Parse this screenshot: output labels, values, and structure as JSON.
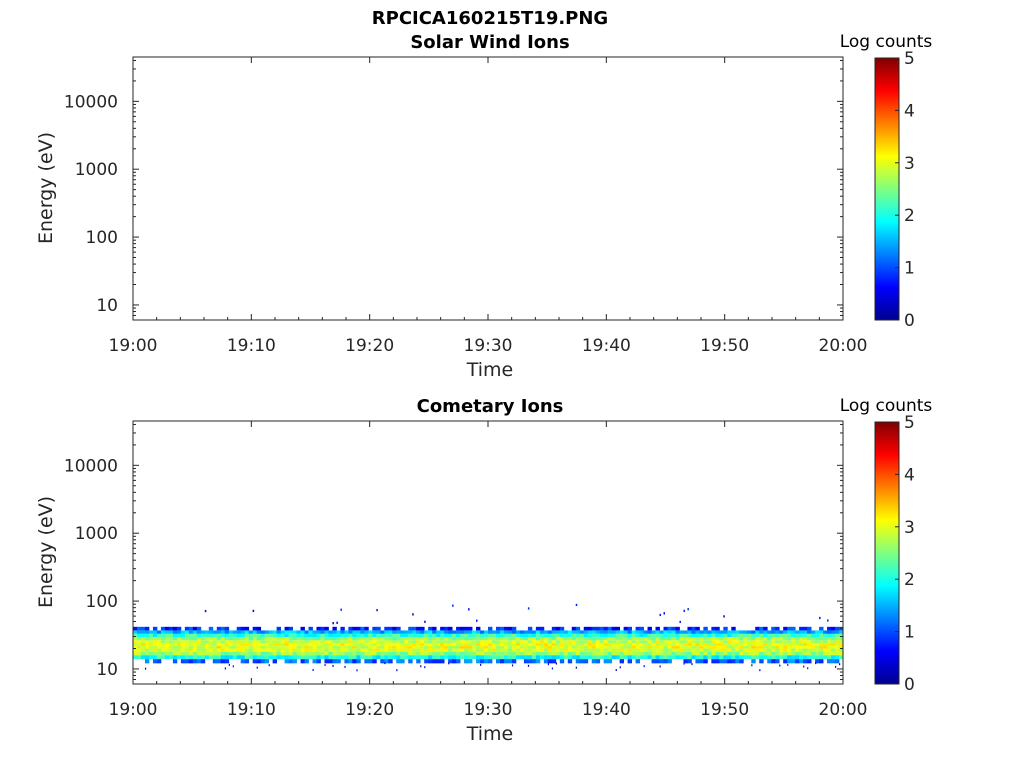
{
  "figure": {
    "title": "RPCICA160215T19.PNG"
  },
  "chart_data": [
    {
      "type": "heatmap",
      "title": "Solar Wind Ions",
      "xlabel": "Time",
      "ylabel": "Energy (eV)",
      "x_ticks": [
        "19:00",
        "19:10",
        "19:20",
        "19:30",
        "19:40",
        "19:50",
        "20:00"
      ],
      "y_ticks": [
        "10",
        "100",
        "1000",
        "10000"
      ],
      "y_scale": "log",
      "xlim": [
        "19:00",
        "20:00"
      ],
      "ylim": [
        6,
        45000
      ],
      "colorbar": {
        "label": "Log counts",
        "ticks": [
          "0",
          "1",
          "2",
          "3",
          "4",
          "5"
        ],
        "range": [
          0,
          5
        ],
        "colormap": "jet"
      },
      "values": [],
      "note_empty": true
    },
    {
      "type": "heatmap",
      "title": "Cometary Ions",
      "xlabel": "Time",
      "ylabel": "Energy (eV)",
      "x_ticks": [
        "19:00",
        "19:10",
        "19:20",
        "19:30",
        "19:40",
        "19:50",
        "20:00"
      ],
      "y_ticks": [
        "10",
        "100",
        "1000",
        "10000"
      ],
      "y_scale": "log",
      "xlim": [
        "19:00",
        "20:00"
      ],
      "ylim": [
        6,
        45000
      ],
      "colorbar": {
        "label": "Log counts",
        "ticks": [
          "0",
          "1",
          "2",
          "3",
          "4",
          "5"
        ],
        "range": [
          0,
          5
        ],
        "colormap": "jet"
      },
      "energy_bins_eV": [
        13,
        15,
        17,
        19,
        21,
        23,
        25,
        28,
        31,
        35,
        39
      ],
      "log_counts_profile": [
        1.1,
        2.0,
        2.6,
        2.9,
        3.0,
        3.0,
        2.9,
        2.6,
        2.1,
        1.5,
        0.8
      ],
      "time_range_min": [
        0,
        60
      ]
    }
  ]
}
